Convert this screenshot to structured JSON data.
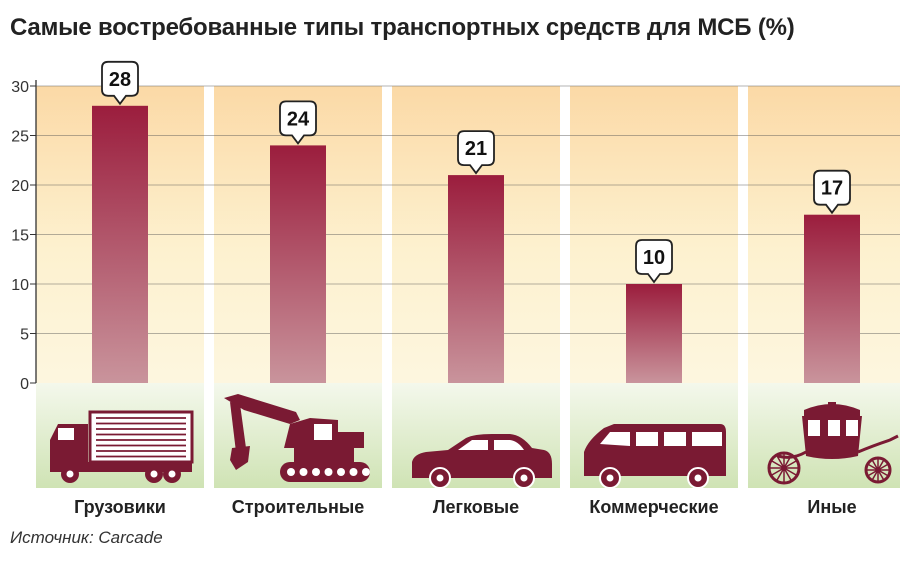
{
  "chart_data": {
    "type": "bar",
    "title": "Самые востребованные типы транспортных средств для МСБ (%)",
    "categories": [
      "Грузовики",
      "Строительные",
      "Легковые",
      "Коммерческие",
      "Иные"
    ],
    "values": [
      28,
      24,
      21,
      10,
      17
    ],
    "ylim": [
      0,
      30
    ],
    "yticks": [
      0,
      5,
      10,
      15,
      20,
      25,
      30
    ],
    "grid": true,
    "legend": "none",
    "source": "Источник: Carcade",
    "icons": [
      "truck-icon",
      "excavator-icon",
      "car-icon",
      "van-icon",
      "carriage-icon"
    ]
  },
  "colors": {
    "bar_top": "#9b1d3d",
    "bar_bottom": "#c9949c",
    "panel": "#fdf1cf",
    "ground": "#cfe3b4",
    "icon": "#7a1a33",
    "grid": "#555555"
  }
}
